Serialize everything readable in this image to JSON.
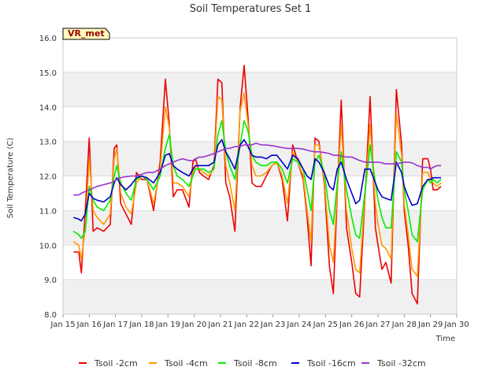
{
  "chart_data": {
    "type": "line",
    "title": "Soil Temperatures Set 1",
    "xlabel": "Time",
    "ylabel": "Soil Temperature (C)",
    "station_label": "VR_met",
    "xlim": [
      15,
      30
    ],
    "ylim": [
      8.0,
      16.0
    ],
    "x_ticks": [
      15,
      16,
      17,
      18,
      19,
      20,
      21,
      22,
      23,
      24,
      25,
      26,
      27,
      28,
      29,
      30
    ],
    "x_tick_labels": [
      "Jan 15",
      "Jan 16",
      "Jan 17",
      "Jan 18",
      "Jan 19",
      "Jan 20",
      "Jan 21",
      "Jan 22",
      "Jan 23",
      "Jan 24",
      "Jan 25",
      "Jan 26",
      "Jan 27",
      "Jan 28",
      "Jan 29",
      "Jan 30"
    ],
    "y_ticks": [
      8.0,
      9.0,
      10.0,
      11.0,
      12.0,
      13.0,
      14.0,
      15.0,
      16.0
    ],
    "y_tick_labels": [
      "8.0",
      "9.0",
      "10.0",
      "11.0",
      "12.0",
      "13.0",
      "14.0",
      "15.0",
      "16.0"
    ],
    "grid": true,
    "legend_position": "bottom",
    "x": [
      15.4,
      15.6,
      15.7,
      15.85,
      16.0,
      16.15,
      16.3,
      16.55,
      16.8,
      16.95,
      17.05,
      17.2,
      17.4,
      17.6,
      17.8,
      18.0,
      18.2,
      18.45,
      18.7,
      18.9,
      19.05,
      19.2,
      19.35,
      19.55,
      19.8,
      19.95,
      20.05,
      20.2,
      20.35,
      20.55,
      20.75,
      20.9,
      21.05,
      21.2,
      21.35,
      21.55,
      21.75,
      21.9,
      22.05,
      22.2,
      22.35,
      22.55,
      22.75,
      22.95,
      23.15,
      23.35,
      23.55,
      23.75,
      23.95,
      24.15,
      24.3,
      24.45,
      24.6,
      24.75,
      24.95,
      25.15,
      25.3,
      25.45,
      25.6,
      25.8,
      26.0,
      26.15,
      26.3,
      26.5,
      26.7,
      26.9,
      27.0,
      27.15,
      27.3,
      27.5,
      27.7,
      27.9,
      28.0,
      28.15,
      28.3,
      28.5,
      28.7,
      28.9,
      29.0,
      29.1,
      29.25,
      29.4
    ],
    "series": [
      {
        "name": "Tsoil -2cm",
        "color": "#ee0000",
        "values": [
          9.8,
          9.8,
          9.2,
          11.0,
          13.1,
          10.4,
          10.5,
          10.4,
          10.6,
          12.8,
          12.9,
          11.2,
          10.9,
          10.6,
          12.1,
          11.9,
          11.9,
          11.0,
          12.4,
          14.8,
          13.5,
          11.4,
          11.6,
          11.6,
          11.1,
          12.4,
          12.5,
          12.1,
          12.0,
          11.9,
          12.3,
          14.8,
          14.7,
          11.8,
          11.4,
          10.4,
          14.0,
          15.2,
          13.7,
          11.8,
          11.7,
          11.7,
          12.0,
          12.3,
          12.4,
          11.9,
          10.7,
          12.9,
          12.4,
          11.9,
          10.8,
          9.4,
          13.1,
          13.0,
          11.8,
          9.4,
          8.6,
          11.5,
          14.2,
          10.5,
          9.5,
          8.6,
          8.5,
          11.3,
          14.3,
          10.5,
          10.0,
          9.3,
          9.5,
          8.9,
          14.5,
          12.9,
          11.0,
          10.0,
          8.6,
          8.3,
          12.5,
          12.5,
          12.2,
          11.6,
          11.6,
          11.7
        ]
      },
      {
        "name": "Tsoil -4cm",
        "color": "#ff9900",
        "values": [
          10.1,
          10.0,
          9.6,
          10.5,
          12.5,
          11.0,
          10.8,
          10.6,
          10.9,
          12.5,
          12.8,
          11.5,
          11.1,
          10.9,
          11.8,
          12.0,
          11.9,
          11.2,
          12.2,
          14.0,
          13.4,
          11.8,
          11.8,
          11.7,
          11.4,
          12.1,
          12.3,
          12.2,
          12.1,
          12.0,
          12.2,
          14.3,
          14.2,
          12.3,
          11.8,
          11.0,
          13.9,
          14.4,
          13.5,
          12.3,
          12.0,
          12.0,
          12.1,
          12.3,
          12.4,
          12.0,
          11.2,
          12.7,
          12.4,
          12.0,
          11.0,
          10.1,
          12.9,
          12.9,
          11.9,
          10.0,
          9.5,
          11.6,
          13.5,
          11.0,
          9.9,
          9.3,
          9.2,
          11.4,
          13.5,
          11.2,
          10.6,
          10.0,
          9.9,
          9.6,
          13.8,
          12.6,
          11.2,
          10.3,
          9.3,
          9.1,
          12.1,
          12.1,
          11.9,
          11.8,
          11.7,
          11.8
        ]
      },
      {
        "name": "Tsoil -8cm",
        "color": "#00ee00",
        "values": [
          10.4,
          10.3,
          10.2,
          10.4,
          11.7,
          11.3,
          11.1,
          11.0,
          11.3,
          12.0,
          12.3,
          11.8,
          11.5,
          11.3,
          11.9,
          12.0,
          11.9,
          11.6,
          12.0,
          12.8,
          13.2,
          12.3,
          12.0,
          11.9,
          11.7,
          12.0,
          12.2,
          12.2,
          12.2,
          12.1,
          12.2,
          13.2,
          13.6,
          12.7,
          12.3,
          11.9,
          12.9,
          13.6,
          13.3,
          12.6,
          12.4,
          12.3,
          12.3,
          12.4,
          12.4,
          12.2,
          11.8,
          12.5,
          12.4,
          12.2,
          11.6,
          11.0,
          12.4,
          12.6,
          12.1,
          11.0,
          10.6,
          11.8,
          12.7,
          11.6,
          10.8,
          10.3,
          10.2,
          11.5,
          12.9,
          11.8,
          11.3,
          10.8,
          10.5,
          10.5,
          12.7,
          12.4,
          11.6,
          11.0,
          10.3,
          10.1,
          11.6,
          11.9,
          11.8,
          11.9,
          11.8,
          11.9
        ]
      },
      {
        "name": "Tsoil -16cm",
        "color": "#0000cc",
        "values": [
          10.8,
          10.75,
          10.7,
          10.9,
          11.5,
          11.35,
          11.3,
          11.25,
          11.4,
          11.8,
          11.95,
          11.75,
          11.6,
          11.75,
          11.95,
          12.0,
          11.95,
          11.8,
          12.1,
          12.6,
          12.65,
          12.3,
          12.2,
          12.1,
          12.0,
          12.2,
          12.3,
          12.3,
          12.3,
          12.3,
          12.4,
          12.9,
          13.05,
          12.7,
          12.5,
          12.2,
          12.9,
          13.05,
          12.85,
          12.6,
          12.55,
          12.55,
          12.5,
          12.6,
          12.6,
          12.4,
          12.2,
          12.6,
          12.5,
          12.2,
          12.0,
          11.9,
          12.5,
          12.4,
          12.1,
          11.7,
          11.6,
          12.2,
          12.4,
          11.9,
          11.5,
          11.2,
          11.3,
          12.2,
          12.2,
          11.8,
          11.6,
          11.4,
          11.35,
          11.3,
          12.4,
          12.1,
          11.7,
          11.4,
          11.15,
          11.2,
          11.7,
          11.9,
          11.9,
          11.95,
          11.95,
          11.95
        ]
      },
      {
        "name": "Tsoil -32cm",
        "color": "#9933cc",
        "values": [
          11.45,
          11.45,
          11.5,
          11.55,
          11.6,
          11.65,
          11.7,
          11.75,
          11.8,
          11.85,
          11.9,
          11.95,
          11.98,
          12.0,
          12.0,
          12.05,
          12.1,
          12.1,
          12.2,
          12.3,
          12.35,
          12.4,
          12.45,
          12.5,
          12.45,
          12.45,
          12.5,
          12.55,
          12.55,
          12.6,
          12.65,
          12.7,
          12.75,
          12.8,
          12.8,
          12.85,
          12.85,
          12.9,
          12.9,
          12.9,
          12.95,
          12.9,
          12.9,
          12.88,
          12.85,
          12.82,
          12.8,
          12.8,
          12.8,
          12.78,
          12.75,
          12.72,
          12.7,
          12.7,
          12.68,
          12.65,
          12.6,
          12.6,
          12.58,
          12.55,
          12.55,
          12.5,
          12.45,
          12.4,
          12.4,
          12.4,
          12.4,
          12.38,
          12.35,
          12.35,
          12.35,
          12.38,
          12.4,
          12.4,
          12.38,
          12.3,
          12.25,
          12.25,
          12.2,
          12.25,
          12.3,
          12.3
        ]
      }
    ]
  }
}
